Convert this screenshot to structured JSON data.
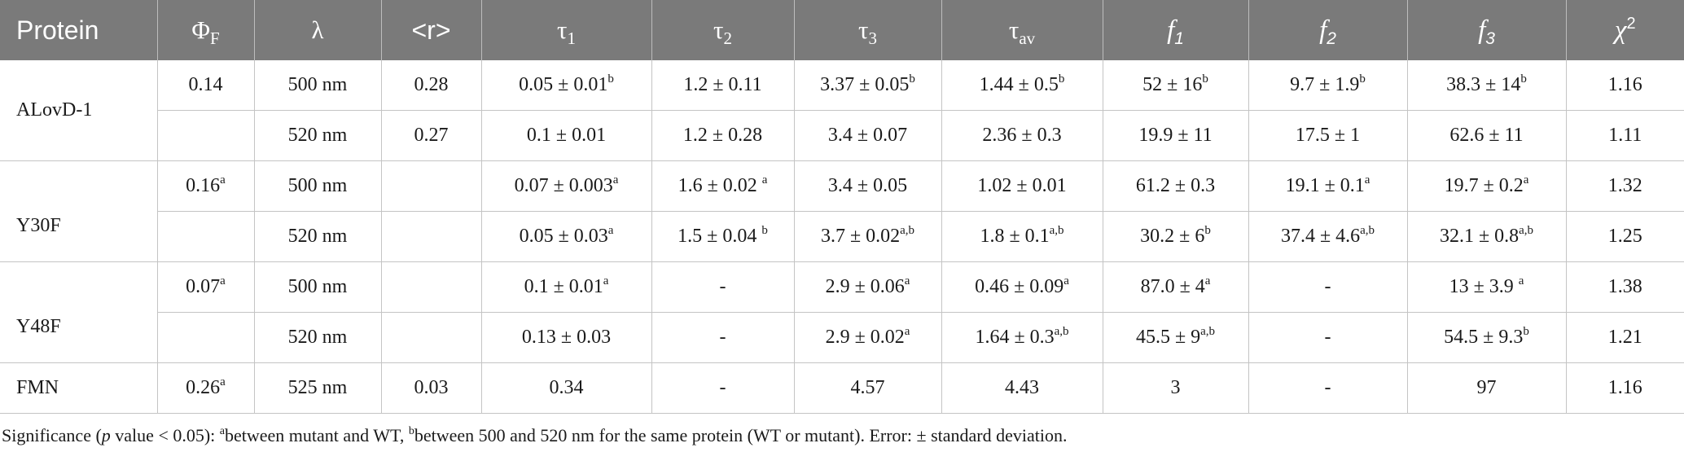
{
  "table": {
    "headers": {
      "protein": "Protein",
      "phi": "Φ",
      "phi_sub": "F",
      "lambda": "λ",
      "r": "<r>",
      "tau": "τ",
      "tau1_sub": "1",
      "tau2_sub": "2",
      "tau3_sub": "3",
      "tauav_sub": "av",
      "f": "f",
      "f1_sub": "1",
      "f2_sub": "2",
      "f3_sub": "3",
      "chi": "χ",
      "chi_sup": "2"
    },
    "rows": [
      {
        "protein": "ALovD-1",
        "phi": "0.14",
        "phi_sup": "",
        "lambda": "500 nm",
        "r": "0.28",
        "tau1": "0.05 ± 0.01",
        "tau1_sup": "b",
        "tau2": "1.2 ± 0.11",
        "tau2_sup": "",
        "tau3": "3.37 ± 0.05",
        "tau3_sup": "b",
        "tauav": "1.44 ± 0.5",
        "tauav_sup": "b",
        "f1": "52 ± 16",
        "f1_sup": "b",
        "f2": "9.7 ± 1.9",
        "f2_sup": "b",
        "f3": "38.3 ± 14",
        "f3_sup": "b",
        "chi": "1.16"
      },
      {
        "phi": "",
        "phi_sup": "",
        "lambda": "520 nm",
        "r": "0.27",
        "tau1": "0.1 ± 0.01",
        "tau1_sup": "",
        "tau2": "1.2 ± 0.28",
        "tau2_sup": "",
        "tau3": "3.4 ± 0.07",
        "tau3_sup": "",
        "tauav": "2.36 ± 0.3",
        "tauav_sup": "",
        "f1": "19.9 ± 11",
        "f1_sup": "",
        "f2": "17.5 ± 1",
        "f2_sup": "",
        "f3": "62.6 ± 11",
        "f3_sup": "",
        "chi": "1.11"
      },
      {
        "protein": "Y30F",
        "phi": "0.16",
        "phi_sup": "a",
        "lambda": "500 nm",
        "r": "",
        "tau1": "0.07 ± 0.003",
        "tau1_sup": "a",
        "tau2": "1.6 ± 0.02 ",
        "tau2_sup": "a",
        "tau3": "3.4 ± 0.05",
        "tau3_sup": "",
        "tauav": "1.02 ± 0.01",
        "tauav_sup": "",
        "f1": "61.2 ± 0.3",
        "f1_sup": "",
        "f2": "19.1 ± 0.1",
        "f2_sup": "a",
        "f3": "19.7 ± 0.2",
        "f3_sup": "a",
        "chi": "1.32"
      },
      {
        "phi": "",
        "phi_sup": "",
        "lambda": "520 nm",
        "r": "",
        "tau1": "0.05 ± 0.03",
        "tau1_sup": "a",
        "tau2": "1.5 ± 0.04 ",
        "tau2_sup": "b",
        "tau3": "3.7 ± 0.02",
        "tau3_sup": "a,b",
        "tauav": "1.8 ± 0.1",
        "tauav_sup": "a,b",
        "f1": "30.2 ± 6",
        "f1_sup": "b",
        "f2": "37.4 ± 4.6",
        "f2_sup": "a,b",
        "f3": "32.1 ± 0.8",
        "f3_sup": "a,b",
        "chi": "1.25"
      },
      {
        "protein": "Y48F",
        "phi": "0.07",
        "phi_sup": "a",
        "lambda": "500 nm",
        "r": "",
        "tau1": "0.1 ± 0.01",
        "tau1_sup": "a",
        "tau2": "-",
        "tau2_sup": "",
        "tau3": "2.9 ± 0.06",
        "tau3_sup": "a",
        "tauav": "0.46 ± 0.09",
        "tauav_sup": "a",
        "f1": "87.0 ± 4",
        "f1_sup": "a",
        "f2": "-",
        "f2_sup": "",
        "f3": "13 ± 3.9 ",
        "f3_sup": "a",
        "chi": "1.38"
      },
      {
        "phi": "",
        "phi_sup": "",
        "lambda": "520 nm",
        "r": "",
        "tau1": "0.13 ± 0.03",
        "tau1_sup": "",
        "tau2": "-",
        "tau2_sup": "",
        "tau3": "2.9 ± 0.02",
        "tau3_sup": "a",
        "tauav": "1.64 ± 0.3",
        "tauav_sup": "a,b",
        "f1": "45.5 ± 9",
        "f1_sup": "a,b",
        "f2": "-",
        "f2_sup": "",
        "f3": "54.5 ± 9.3",
        "f3_sup": "b",
        "chi": "1.21"
      },
      {
        "protein": "FMN",
        "phi": "0.26",
        "phi_sup": "a",
        "lambda": "525 nm",
        "r": "0.03",
        "tau1": "0.34",
        "tau1_sup": "",
        "tau2": "-",
        "tau2_sup": "",
        "tau3": "4.57",
        "tau3_sup": "",
        "tauav": "4.43",
        "tauav_sup": "",
        "f1": "3",
        "f1_sup": "",
        "f2": "-",
        "f2_sup": "",
        "f3": "97",
        "f3_sup": "",
        "chi": "1.16"
      }
    ]
  },
  "footnote": {
    "prefix": "Significance (",
    "p": "p",
    "middle": " value < 0.05): ",
    "a_sup": "a",
    "a_text": "between mutant and WT, ",
    "b_sup": "b",
    "b_text": "between 500 and 520 nm for the same protein (WT or mutant). Error: ± standard deviation."
  }
}
